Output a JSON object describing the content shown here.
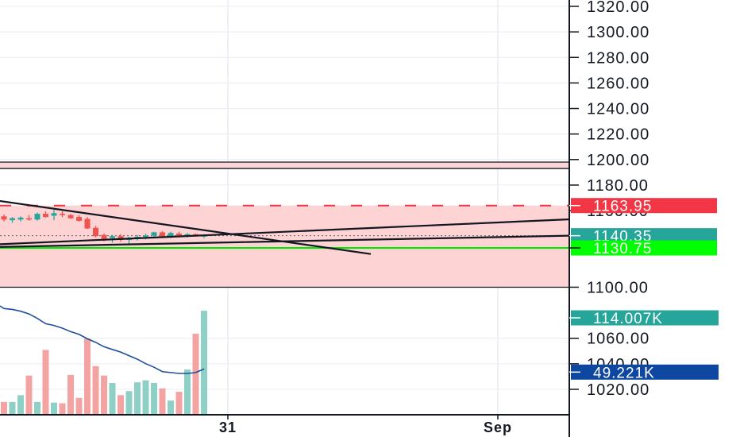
{
  "chart_data": {
    "type": "candlestick",
    "title": "",
    "price_axis": {
      "ylim": [
        1007,
        1328
      ],
      "ticks": [
        "1320.00",
        "1300.00",
        "1280.00",
        "1260.00",
        "1240.00",
        "1220.00",
        "1200.00",
        "1180.00",
        "1160.00",
        "1100.00",
        "1060.00",
        "1040.00",
        "1020.00"
      ]
    },
    "time_axis": {
      "ticks": [
        "31",
        "Sep"
      ]
    },
    "grid": true,
    "candles": [
      {
        "o": 1155.5,
        "h": 1157.0,
        "l": 1151.5,
        "c": 1153.0
      },
      {
        "o": 1152.5,
        "h": 1155.0,
        "l": 1150.5,
        "c": 1154.0
      },
      {
        "o": 1153.0,
        "h": 1155.5,
        "l": 1151.5,
        "c": 1154.5
      },
      {
        "o": 1154.0,
        "h": 1156.5,
        "l": 1152.0,
        "c": 1153.0
      },
      {
        "o": 1153.0,
        "h": 1158.5,
        "l": 1152.0,
        "c": 1157.5
      },
      {
        "o": 1157.5,
        "h": 1159.5,
        "l": 1154.5,
        "c": 1155.0
      },
      {
        "o": 1156.0,
        "h": 1160.5,
        "l": 1152.5,
        "c": 1158.0
      },
      {
        "o": 1157.5,
        "h": 1159.5,
        "l": 1155.0,
        "c": 1156.5
      },
      {
        "o": 1156.5,
        "h": 1157.5,
        "l": 1153.5,
        "c": 1154.0
      },
      {
        "o": 1155.0,
        "h": 1156.5,
        "l": 1151.5,
        "c": 1152.0
      },
      {
        "o": 1153.5,
        "h": 1155.0,
        "l": 1145.5,
        "c": 1146.0
      },
      {
        "o": 1146.5,
        "h": 1148.0,
        "l": 1139.0,
        "c": 1140.0
      },
      {
        "o": 1141.0,
        "h": 1142.0,
        "l": 1136.0,
        "c": 1138.0
      },
      {
        "o": 1138.5,
        "h": 1141.0,
        "l": 1135.0,
        "c": 1140.0
      },
      {
        "o": 1140.0,
        "h": 1141.5,
        "l": 1135.5,
        "c": 1137.0
      },
      {
        "o": 1137.0,
        "h": 1139.5,
        "l": 1134.0,
        "c": 1138.5
      },
      {
        "o": 1138.5,
        "h": 1141.0,
        "l": 1136.5,
        "c": 1139.5
      },
      {
        "o": 1139.5,
        "h": 1142.0,
        "l": 1137.5,
        "c": 1140.5
      },
      {
        "o": 1140.5,
        "h": 1143.5,
        "l": 1139.0,
        "c": 1143.0
      },
      {
        "o": 1143.0,
        "h": 1144.0,
        "l": 1138.5,
        "c": 1139.5
      },
      {
        "o": 1139.5,
        "h": 1143.5,
        "l": 1138.5,
        "c": 1142.5
      },
      {
        "o": 1142.0,
        "h": 1143.5,
        "l": 1139.5,
        "c": 1140.5
      },
      {
        "o": 1140.5,
        "h": 1142.5,
        "l": 1139.0,
        "c": 1141.5
      },
      {
        "o": 1141.5,
        "h": 1142.0,
        "l": 1139.5,
        "c": 1140.0
      },
      {
        "o": 1140.0,
        "h": 1141.5,
        "l": 1138.5,
        "c": 1140.5
      }
    ],
    "volume": [
      9.5,
      9.5,
      14.5,
      29.0,
      9.5,
      48.0,
      9.0,
      8.5,
      29.5,
      12.5,
      56.5,
      36.0,
      29.0,
      23.5,
      14.5,
      17.5,
      24.0,
      25.5,
      23.5,
      19.5,
      10.5,
      17.0,
      33.5,
      60.0,
      77.0
    ],
    "volume_ma": [
      97,
      96,
      94,
      91,
      86,
      80,
      78,
      75,
      71,
      68,
      63,
      59,
      54,
      51,
      48,
      44,
      40,
      35,
      31,
      26,
      25,
      24,
      24,
      25,
      29
    ],
    "volume_scale_max": 100,
    "horizontal_lines": [
      {
        "name": "zone-top-border-upper",
        "price": 1198.0,
        "color": "#131722"
      },
      {
        "name": "zone-top-border-lower",
        "price": 1193.0,
        "color": "#131722"
      },
      {
        "name": "resistance-dashed",
        "price": 1163.95,
        "color": "#f23645",
        "style": "dashed"
      },
      {
        "name": "zone-bottom-border",
        "price": 1100.0,
        "color": "#131722"
      },
      {
        "name": "support-green",
        "price": 1130.75,
        "color": "#00e600"
      }
    ],
    "zones": [
      {
        "name": "upper-supply-zone",
        "from": 1193.0,
        "to": 1198.0,
        "color": "#fcd6d6"
      },
      {
        "name": "main-range-zone",
        "from": 1100.0,
        "to": 1163.95,
        "color": "#fdd3d3"
      }
    ],
    "trendlines": [
      {
        "name": "descending-trendline",
        "p1": {
          "bar": -1,
          "price": 1168.0
        },
        "p2": {
          "bar": 44,
          "price": 1126.0
        }
      },
      {
        "name": "ascending-trendline-upper",
        "p1": {
          "bar": -1,
          "price": 1133.5
        },
        "p2": {
          "bar": 69,
          "price": 1153.5
        }
      },
      {
        "name": "ascending-trendline-lower",
        "p1": {
          "bar": -1,
          "price": 1131.5
        },
        "p2": {
          "bar": 69,
          "price": 1140.5
        }
      }
    ],
    "last_price_line": 1140.35,
    "price_labels": [
      {
        "name": "resistance-label",
        "text": "1163.95",
        "price": 1163.95,
        "color": "#f23645"
      },
      {
        "name": "last-price-label",
        "text": "1140.35",
        "price": 1140.35,
        "color": "#26a69a"
      },
      {
        "name": "support-label",
        "text": "1130.75",
        "price": 1130.75,
        "color": "#00ff00",
        "text_color": "#000000"
      },
      {
        "name": "volume-label",
        "text": "114.007K",
        "price": 1076.0,
        "color": "#26a69a"
      },
      {
        "name": "volume-ma-label",
        "text": "49.221K",
        "price": 1033.5,
        "color": "#0d47a1"
      }
    ],
    "colors": {
      "up": "#26a69a",
      "down": "#ef5350",
      "volume_up": "#8fd0c6",
      "volume_down": "#f4a3a3",
      "volume_ma": "#1e4f9c",
      "grid": "#e9ecf2",
      "axis": "#131722"
    }
  }
}
